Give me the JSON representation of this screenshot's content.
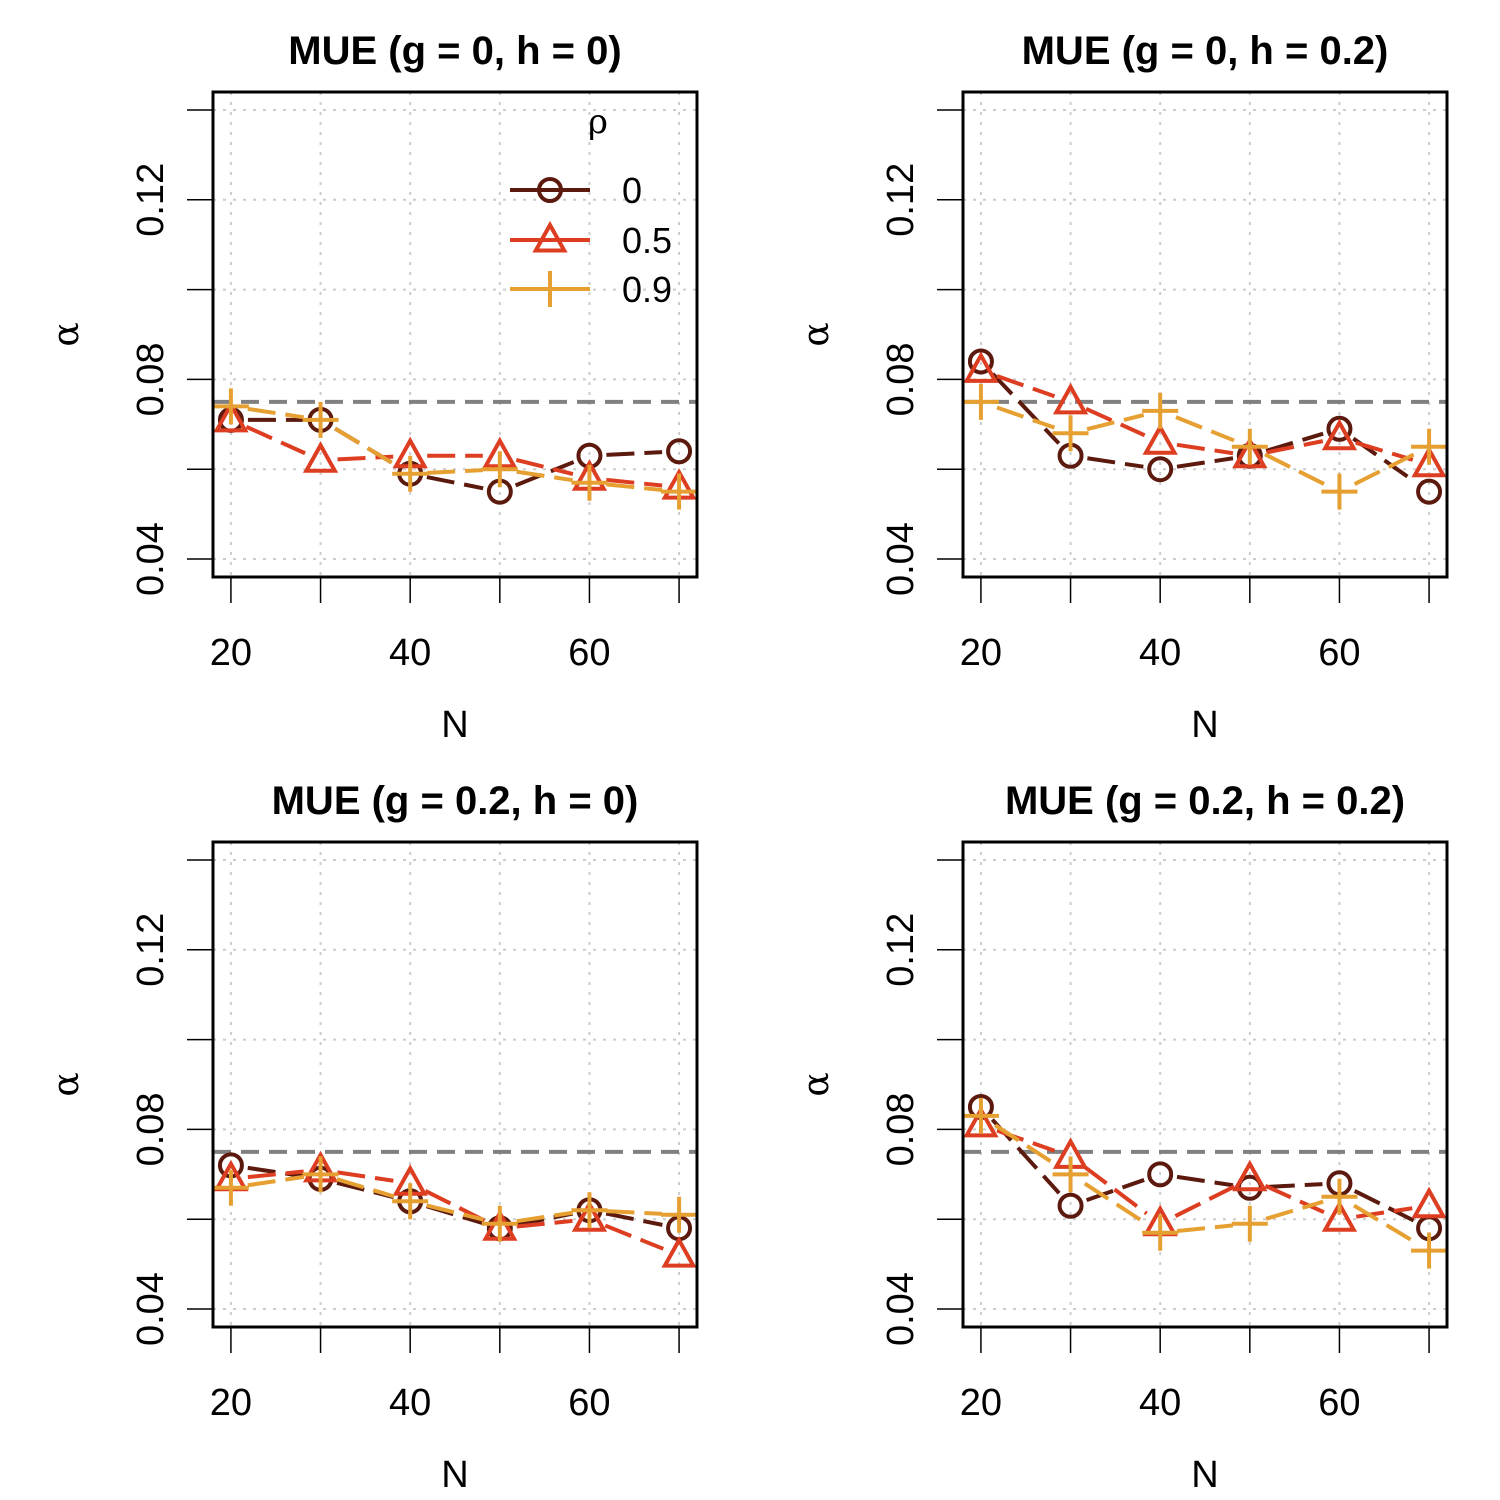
{
  "figure": {
    "ylabel_symbol": "α",
    "xlabel": "N"
  },
  "colors": {
    "rho_0": "#5c1a0e",
    "rho_0_5": "#dd3d21",
    "rho_0_9": "#e6a032",
    "reference": "#808080",
    "grid": "#cccccc"
  },
  "chart_data": [
    {
      "type": "line",
      "title": "MUE (g = 0, h = 0)",
      "xlabel": "N",
      "ylabel": "α",
      "x": [
        20,
        30,
        40,
        50,
        60,
        70
      ],
      "xlim": [
        18,
        72
      ],
      "ylim": [
        0.036,
        0.144
      ],
      "xticks": [
        "20",
        "40",
        "60"
      ],
      "yticks": [
        "0.04",
        "0.08",
        "0.12"
      ],
      "reference_line": 0.075,
      "legend": {
        "title": "ρ",
        "position": "top-right",
        "entries": [
          "0",
          "0.5",
          "0.9"
        ]
      },
      "series": [
        {
          "name": "0",
          "marker": "circle",
          "color_key": "rho_0",
          "values": [
            0.071,
            0.071,
            0.059,
            0.055,
            0.063,
            0.064
          ]
        },
        {
          "name": "0.5",
          "marker": "triangle",
          "color_key": "rho_0_5",
          "values": [
            0.071,
            0.062,
            0.063,
            0.063,
            0.058,
            0.056
          ]
        },
        {
          "name": "0.9",
          "marker": "plus",
          "color_key": "rho_0_9",
          "values": [
            0.074,
            0.071,
            0.059,
            0.06,
            0.057,
            0.055
          ]
        }
      ]
    },
    {
      "type": "line",
      "title": "MUE (g = 0, h = 0.2)",
      "xlabel": "N",
      "ylabel": "α",
      "x": [
        20,
        30,
        40,
        50,
        60,
        70
      ],
      "xlim": [
        18,
        72
      ],
      "ylim": [
        0.036,
        0.144
      ],
      "xticks": [
        "20",
        "40",
        "60"
      ],
      "yticks": [
        "0.04",
        "0.08",
        "0.12"
      ],
      "reference_line": 0.075,
      "legend": null,
      "series": [
        {
          "name": "0",
          "marker": "circle",
          "color_key": "rho_0",
          "values": [
            0.084,
            0.063,
            0.06,
            0.063,
            0.069,
            0.055
          ]
        },
        {
          "name": "0.5",
          "marker": "triangle",
          "color_key": "rho_0_5",
          "values": [
            0.082,
            0.075,
            0.066,
            0.063,
            0.067,
            0.061
          ]
        },
        {
          "name": "0.9",
          "marker": "plus",
          "color_key": "rho_0_9",
          "values": [
            0.075,
            0.068,
            0.073,
            0.065,
            0.055,
            0.065
          ]
        }
      ]
    },
    {
      "type": "line",
      "title": "MUE (g = 0.2, h = 0)",
      "xlabel": "N",
      "ylabel": "α",
      "x": [
        20,
        30,
        40,
        50,
        60,
        70
      ],
      "xlim": [
        18,
        72
      ],
      "ylim": [
        0.036,
        0.144
      ],
      "xticks": [
        "20",
        "40",
        "60"
      ],
      "yticks": [
        "0.04",
        "0.08",
        "0.12"
      ],
      "reference_line": 0.075,
      "legend": null,
      "series": [
        {
          "name": "0",
          "marker": "circle",
          "color_key": "rho_0",
          "values": [
            0.072,
            0.069,
            0.064,
            0.058,
            0.062,
            0.058
          ]
        },
        {
          "name": "0.5",
          "marker": "triangle",
          "color_key": "rho_0_5",
          "values": [
            0.069,
            0.071,
            0.068,
            0.058,
            0.06,
            0.052
          ]
        },
        {
          "name": "0.9",
          "marker": "plus",
          "color_key": "rho_0_9",
          "values": [
            0.067,
            0.07,
            0.064,
            0.059,
            0.062,
            0.061
          ]
        }
      ]
    },
    {
      "type": "line",
      "title": "MUE (g = 0.2, h = 0.2)",
      "xlabel": "N",
      "ylabel": "α",
      "x": [
        20,
        30,
        40,
        50,
        60,
        70
      ],
      "xlim": [
        18,
        72
      ],
      "ylim": [
        0.036,
        0.144
      ],
      "xticks": [
        "20",
        "40",
        "60"
      ],
      "yticks": [
        "0.04",
        "0.08",
        "0.12"
      ],
      "reference_line": 0.075,
      "legend": null,
      "series": [
        {
          "name": "0",
          "marker": "circle",
          "color_key": "rho_0",
          "values": [
            0.085,
            0.063,
            0.07,
            0.067,
            0.068,
            0.058
          ]
        },
        {
          "name": "0.5",
          "marker": "triangle",
          "color_key": "rho_0_5",
          "values": [
            0.081,
            0.074,
            0.059,
            0.069,
            0.06,
            0.063
          ]
        },
        {
          "name": "0.9",
          "marker": "plus",
          "color_key": "rho_0_9",
          "values": [
            0.083,
            0.07,
            0.057,
            0.059,
            0.065,
            0.053
          ]
        }
      ]
    }
  ]
}
